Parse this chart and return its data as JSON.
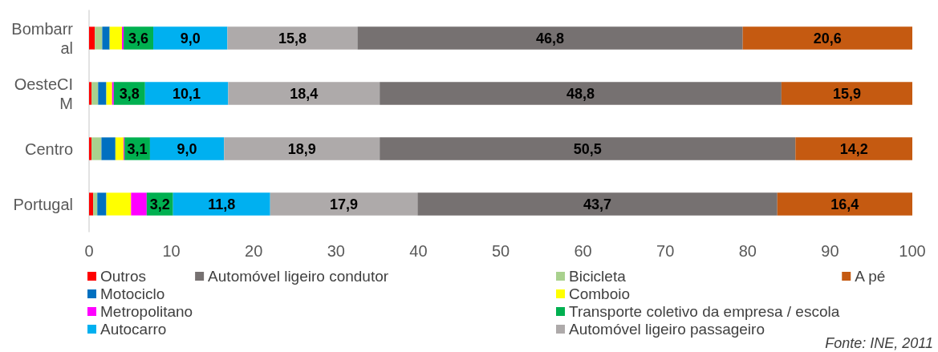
{
  "chart_data": {
    "type": "bar",
    "orientation": "horizontal",
    "stacked": true,
    "categories": [
      "Bombarral",
      "OesteCIM",
      "Centro",
      "Portugal"
    ],
    "series": [
      {
        "name": "Outros",
        "color": "#ff0000",
        "values": [
          0.7,
          0.3,
          0.3,
          0.5
        ]
      },
      {
        "name": "Bicicleta",
        "color": "#a9d18e",
        "values": [
          0.9,
          0.8,
          1.2,
          0.5
        ]
      },
      {
        "name": "Motociclo",
        "color": "#0070c0",
        "values": [
          0.9,
          1.0,
          1.7,
          1.1
        ]
      },
      {
        "name": "Comboio",
        "color": "#ffff00",
        "values": [
          1.5,
          0.7,
          1.0,
          3.0
        ]
      },
      {
        "name": "Metropolitano",
        "color": "#ff00ff",
        "values": [
          0.2,
          0.2,
          0.1,
          1.9
        ]
      },
      {
        "name": "Transporte coletivo da empresa / escola",
        "color": "#00b050",
        "values": [
          3.6,
          3.8,
          3.1,
          3.2
        ],
        "value_labels": [
          "3,6",
          "3,8",
          "3,1",
          "3,2"
        ]
      },
      {
        "name": "Autocarro",
        "color": "#00b0f0",
        "values": [
          9.0,
          10.1,
          9.0,
          11.8
        ],
        "value_labels": [
          "9,0",
          "10,1",
          "9,0",
          "11,8"
        ]
      },
      {
        "name": "Automóvel ligeiro passageiro",
        "color": "#aeaaaa",
        "values": [
          15.8,
          18.4,
          18.9,
          17.9
        ],
        "value_labels": [
          "15,8",
          "18,4",
          "18,9",
          "17,9"
        ]
      },
      {
        "name": "Automóvel ligeiro condutor",
        "color": "#767171",
        "values": [
          46.8,
          48.8,
          50.5,
          43.7
        ],
        "value_labels": [
          "46,8",
          "48,8",
          "50,5",
          "43,7"
        ]
      },
      {
        "name": "A pé",
        "color": "#c55a11",
        "values": [
          20.6,
          15.9,
          14.2,
          16.4
        ],
        "value_labels": [
          "20,6",
          "15,9",
          "14,2",
          "16,4"
        ]
      }
    ],
    "xlim": [
      0,
      100
    ],
    "xticks": [
      0,
      10,
      20,
      30,
      40,
      50,
      60,
      70,
      80,
      90,
      100
    ],
    "grid": false,
    "legend": "bottom",
    "annotations": [
      "Fonte: INE, 2011"
    ]
  }
}
